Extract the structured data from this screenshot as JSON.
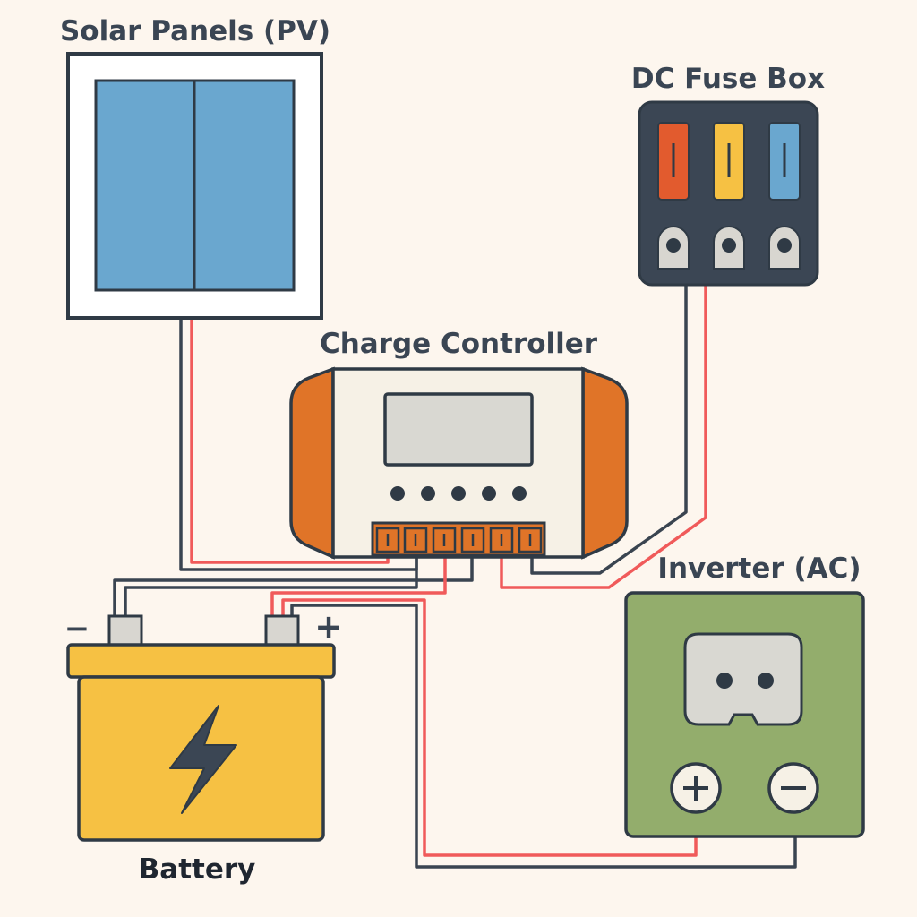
{
  "labels": {
    "solar": "Solar Panels (PV)",
    "fuse_box": "DC Fuse Box",
    "controller": "Charge Controller",
    "inverter": "Inverter (AC)",
    "battery": "Battery",
    "battery_neg": "−",
    "battery_pos": "+"
  },
  "colors": {
    "background": "#fdf6ee",
    "outline": "#2f3a45",
    "wire_negative": "#3a4450",
    "wire_positive": "#f05a5a",
    "solar_cell": "#6aa7cf",
    "controller_body": "#f6f1e6",
    "controller_accent": "#e07428",
    "battery_body": "#f6c143",
    "inverter_body": "#93ad6c",
    "fuse_red": "#e25b2e",
    "fuse_yellow": "#f6c143",
    "fuse_blue": "#6aa7cf"
  },
  "icons": {
    "battery": "lightning-bolt-icon",
    "inverter_positive": "plus-terminal-icon",
    "inverter_negative": "minus-terminal-icon",
    "socket": "ac-outlet-icon"
  }
}
